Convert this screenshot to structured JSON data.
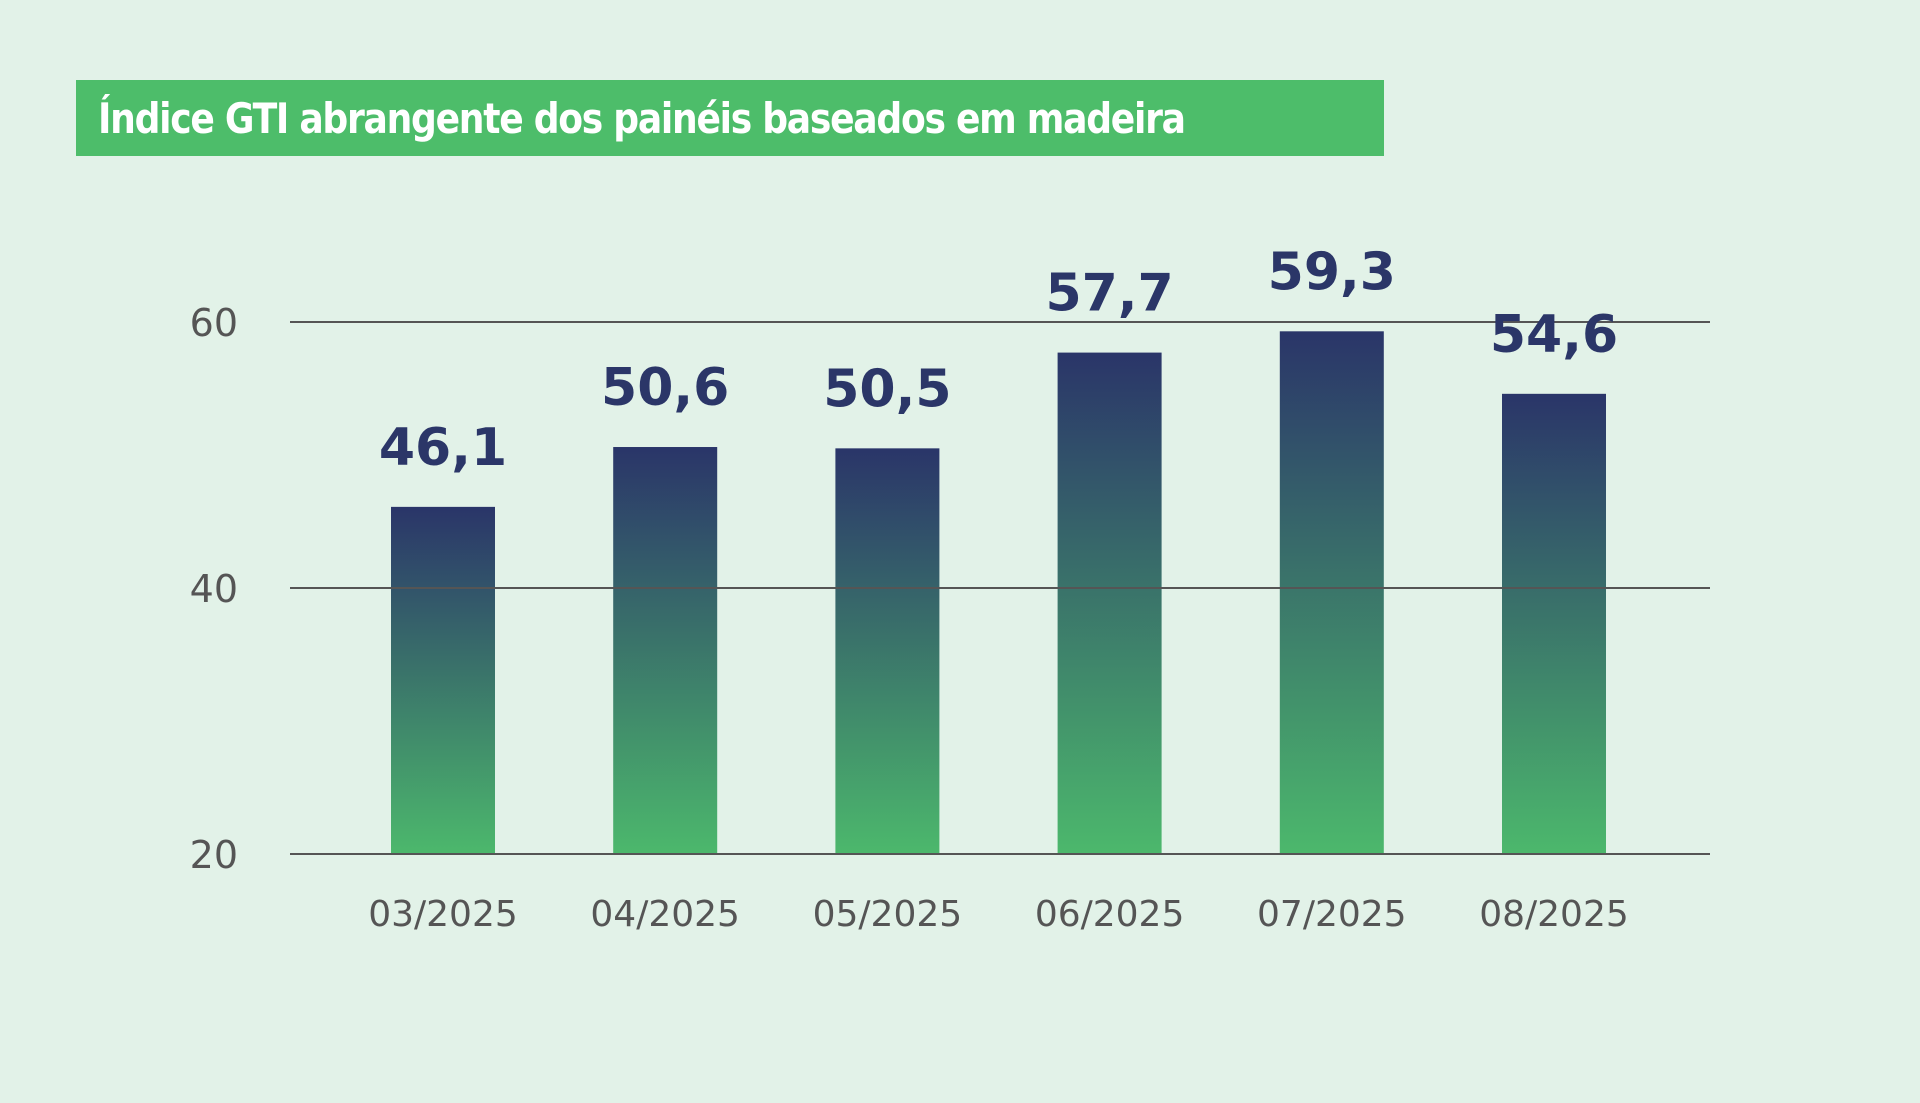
{
  "chart_data": {
    "type": "bar",
    "title": "Índice GTI abrangente dos painéis baseados em madeira",
    "categories": [
      "03/2025",
      "04/2025",
      "05/2025",
      "06/2025",
      "07/2025",
      "08/2025"
    ],
    "values": [
      46.1,
      50.6,
      50.5,
      57.7,
      59.3,
      54.6
    ],
    "value_labels": [
      "46,1",
      "50,6",
      "50,5",
      "57,7",
      "59,3",
      "54,6"
    ],
    "y_ticks": [
      20,
      40,
      60
    ],
    "ylim": [
      20,
      60
    ],
    "xlabel": "",
    "ylabel": "",
    "grid": true,
    "legend": "none",
    "colors": {
      "background": "#e2f2e8",
      "title_box": "#4dbd6a",
      "bar_top": "#2a3569",
      "bar_bottom": "#4cb86c",
      "data_label": "#2b3668",
      "axis_text": "#555555"
    }
  }
}
